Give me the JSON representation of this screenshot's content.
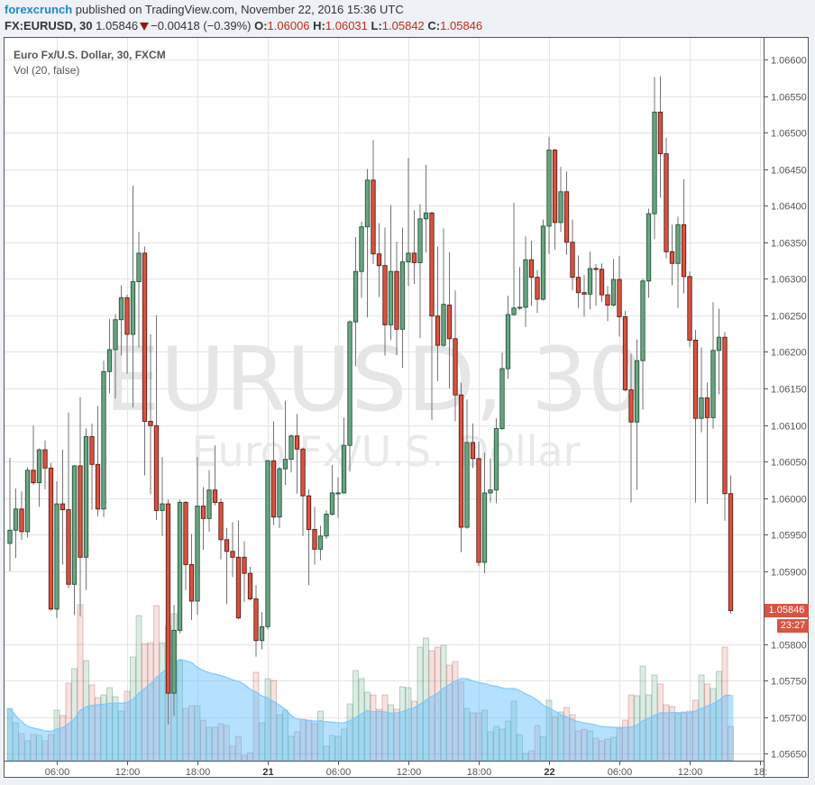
{
  "header": {
    "author": "forexcrunch",
    "published": "published on TradingView.com, November 22, 2016 15:36 UTC",
    "symbol": "FX:EURUSD, 30",
    "last": "1.05846",
    "change": "−0.00418 (−0.39%)",
    "o_label": "O:",
    "o": "1.06006",
    "h_label": "H:",
    "h": "1.06031",
    "l_label": "L:",
    "l": "1.05842",
    "c_label": "C:",
    "c": "1.05846",
    "down_icon": "triangle-down-icon"
  },
  "legend": {
    "title": "Euro Fx/U.S. Dollar, 30, FXCM",
    "volume": "Vol (20, false)"
  },
  "watermark": {
    "symbol": "EURUSD, 30",
    "description": "Euro Fx/U.S. Dollar"
  },
  "price_label": {
    "value": "1.05846",
    "countdown": "23:27"
  },
  "colors": {
    "up": "#6ba583",
    "up_border": "#225437",
    "down": "#d75442",
    "down_border": "#5b1a13",
    "wick": "#737375",
    "volume_ma": "#5bbcff",
    "price_label": "#d75442",
    "author": "#1e88c7"
  },
  "chart_data": {
    "type": "candlestick",
    "interval": "30",
    "price_ticks": [
      "1.06600",
      "1.06550",
      "1.06500",
      "1.06450",
      "1.06400",
      "1.06350",
      "1.06300",
      "1.06250",
      "1.06200",
      "1.06150",
      "1.06100",
      "1.06050",
      "1.06000",
      "1.05950",
      "1.05900",
      "1.05800",
      "1.05750",
      "1.05700",
      "1.05650"
    ],
    "ylim": [
      1.0565,
      1.066
    ],
    "x_ticks": [
      {
        "label": "06:00",
        "candle": 8
      },
      {
        "label": "12:00",
        "candle": 20
      },
      {
        "label": "18:00",
        "candle": 32
      },
      {
        "label": "21",
        "candle": 44
      },
      {
        "label": "06:00",
        "candle": 56
      },
      {
        "label": "12:00",
        "candle": 68
      },
      {
        "label": "18:00",
        "candle": 80
      },
      {
        "label": "22",
        "candle": 92
      },
      {
        "label": "06:00",
        "candle": 104
      },
      {
        "label": "12:00",
        "candle": 116
      },
      {
        "label": "18:",
        "candle": 128
      }
    ],
    "volume_ma_period": 20,
    "grid": true,
    "candles_ohlc": [
      [
        1.05938,
        1.06055,
        1.059,
        1.05956
      ],
      [
        1.05956,
        1.06013,
        1.05918,
        1.05985
      ],
      [
        1.05985,
        1.06009,
        1.05943,
        1.05954
      ],
      [
        1.05954,
        1.06042,
        1.05946,
        1.06038
      ],
      [
        1.06038,
        1.06099,
        1.06018,
        1.06021
      ],
      [
        1.06021,
        1.06068,
        1.05988,
        1.06066
      ],
      [
        1.06066,
        1.06079,
        1.06012,
        1.06041
      ],
      [
        1.06041,
        1.06048,
        1.05846,
        1.05848
      ],
      [
        1.05848,
        1.06023,
        1.05836,
        1.05992
      ],
      [
        1.05992,
        1.06066,
        1.05909,
        1.05984
      ],
      [
        1.05984,
        1.06117,
        1.05877,
        1.05882
      ],
      [
        1.05882,
        1.06045,
        1.0584,
        1.06044
      ],
      [
        1.06044,
        1.06138,
        1.05838,
        1.05919
      ],
      [
        1.05919,
        1.06095,
        1.05874,
        1.06084
      ],
      [
        1.06084,
        1.06102,
        1.05984,
        1.06046
      ],
      [
        1.06046,
        1.06126,
        1.05975,
        1.05985
      ],
      [
        1.05985,
        1.06188,
        1.05974,
        1.06173
      ],
      [
        1.06173,
        1.06245,
        1.06143,
        1.06203
      ],
      [
        1.06203,
        1.06252,
        1.06136,
        1.06244
      ],
      [
        1.06244,
        1.06291,
        1.06195,
        1.06274
      ],
      [
        1.06274,
        1.06278,
        1.0617,
        1.06224
      ],
      [
        1.06224,
        1.06427,
        1.06124,
        1.06296
      ],
      [
        1.06296,
        1.06364,
        1.06206,
        1.06335
      ],
      [
        1.06335,
        1.06344,
        1.06031,
        1.06105
      ],
      [
        1.06105,
        1.06224,
        1.06005,
        1.06099
      ],
      [
        1.06099,
        1.0625,
        1.0597,
        1.05983
      ],
      [
        1.05983,
        1.06056,
        1.05948,
        1.05992
      ],
      [
        1.05992,
        1.05998,
        1.0569,
        1.05733
      ],
      [
        1.05733,
        1.05854,
        1.05702,
        1.05819
      ],
      [
        1.05819,
        1.05998,
        1.05815,
        1.05994
      ],
      [
        1.05994,
        1.05996,
        1.05874,
        1.05909
      ],
      [
        1.05909,
        1.05951,
        1.05833,
        1.05859
      ],
      [
        1.05859,
        1.06056,
        1.0584,
        1.05989
      ],
      [
        1.05989,
        1.06015,
        1.05929,
        1.05972
      ],
      [
        1.05972,
        1.06038,
        1.05954,
        1.06011
      ],
      [
        1.06011,
        1.06072,
        1.0599,
        1.05994
      ],
      [
        1.05994,
        1.05999,
        1.05916,
        1.05943
      ],
      [
        1.05943,
        1.05959,
        1.05855,
        1.05927
      ],
      [
        1.05927,
        1.05967,
        1.05892,
        1.05919
      ],
      [
        1.05919,
        1.05969,
        1.05834,
        1.05836
      ],
      [
        1.05919,
        1.05941,
        1.05858,
        1.05897
      ],
      [
        1.05897,
        1.05906,
        1.0586,
        1.05862
      ],
      [
        1.05862,
        1.05881,
        1.05783,
        1.05805
      ],
      [
        1.05805,
        1.05844,
        1.05793,
        1.05824
      ],
      [
        1.05824,
        1.06052,
        1.0582,
        1.06051
      ],
      [
        1.06051,
        1.06105,
        1.05963,
        1.05974
      ],
      [
        1.05974,
        1.06043,
        1.05959,
        1.0604
      ],
      [
        1.0604,
        1.06133,
        1.06018,
        1.06053
      ],
      [
        1.06053,
        1.06087,
        1.06035,
        1.06085
      ],
      [
        1.06085,
        1.06115,
        1.06006,
        1.06067
      ],
      [
        1.06067,
        1.06069,
        1.05948,
        1.06003
      ],
      [
        1.06003,
        1.06012,
        1.05881,
        1.05957
      ],
      [
        1.05957,
        1.05988,
        1.05909,
        1.0593
      ],
      [
        1.0593,
        1.05962,
        1.05915,
        1.05948
      ],
      [
        1.05948,
        1.05983,
        1.05944,
        1.05978
      ],
      [
        1.05978,
        1.06045,
        1.05976,
        1.06007
      ],
      [
        1.06007,
        1.06028,
        1.05973,
        1.06007
      ],
      [
        1.06007,
        1.0611,
        1.06006,
        1.06072
      ],
      [
        1.06072,
        1.06243,
        1.06036,
        1.06241
      ],
      [
        1.06241,
        1.06357,
        1.0618,
        1.0631
      ],
      [
        1.0631,
        1.06378,
        1.06274,
        1.06371
      ],
      [
        1.06371,
        1.0645,
        1.06247,
        1.06435
      ],
      [
        1.06435,
        1.0649,
        1.0632,
        1.06334
      ],
      [
        1.06334,
        1.06376,
        1.06275,
        1.06318
      ],
      [
        1.06318,
        1.0637,
        1.06195,
        1.06237
      ],
      [
        1.06237,
        1.06401,
        1.06216,
        1.0631
      ],
      [
        1.0631,
        1.06351,
        1.06196,
        1.06231
      ],
      [
        1.06231,
        1.0637,
        1.06178,
        1.06323
      ],
      [
        1.06323,
        1.06465,
        1.0629,
        1.06335
      ],
      [
        1.06335,
        1.06394,
        1.06293,
        1.06322
      ],
      [
        1.06322,
        1.06402,
        1.06219,
        1.06382
      ],
      [
        1.06382,
        1.06456,
        1.06336,
        1.0639
      ],
      [
        1.0639,
        1.06392,
        1.06107,
        1.06249
      ],
      [
        1.06249,
        1.06344,
        1.0616,
        1.06209
      ],
      [
        1.06209,
        1.06369,
        1.06207,
        1.06265
      ],
      [
        1.06264,
        1.06336,
        1.0615,
        1.06218
      ],
      [
        1.06218,
        1.06284,
        1.06105,
        1.06141
      ],
      [
        1.06141,
        1.06158,
        1.05926,
        1.0596
      ],
      [
        1.0596,
        1.06135,
        1.05958,
        1.06076
      ],
      [
        1.06076,
        1.06102,
        1.06041,
        1.06054
      ],
      [
        1.06054,
        1.06077,
        1.05907,
        1.05912
      ],
      [
        1.05912,
        1.06062,
        1.05897,
        1.06007
      ],
      [
        1.06007,
        1.06054,
        1.05994,
        1.06011
      ],
      [
        1.06011,
        1.06109,
        1.05993,
        1.06095
      ],
      [
        1.06095,
        1.06199,
        1.06093,
        1.06177
      ],
      [
        1.06177,
        1.06277,
        1.06163,
        1.06251
      ],
      [
        1.06251,
        1.06404,
        1.06249,
        1.0626
      ],
      [
        1.0626,
        1.06316,
        1.06257,
        1.06261
      ],
      [
        1.06261,
        1.06358,
        1.06234,
        1.06326
      ],
      [
        1.06326,
        1.06352,
        1.06263,
        1.06302
      ],
      [
        1.06302,
        1.06312,
        1.06253,
        1.06272
      ],
      [
        1.06272,
        1.06381,
        1.0627,
        1.06372
      ],
      [
        1.06372,
        1.06494,
        1.06334,
        1.06476
      ],
      [
        1.06476,
        1.06478,
        1.0634,
        1.06377
      ],
      [
        1.06377,
        1.06453,
        1.06364,
        1.06419
      ],
      [
        1.06419,
        1.06447,
        1.06333,
        1.0635
      ],
      [
        1.0635,
        1.06381,
        1.06284,
        1.06302
      ],
      [
        1.06302,
        1.06332,
        1.0626,
        1.06281
      ],
      [
        1.06281,
        1.06305,
        1.06248,
        1.06279
      ],
      [
        1.06279,
        1.06337,
        1.06258,
        1.06314
      ],
      [
        1.06314,
        1.0632,
        1.06263,
        1.06313
      ],
      [
        1.06313,
        1.06321,
        1.06268,
        1.06278
      ],
      [
        1.06278,
        1.0629,
        1.06242,
        1.06264
      ],
      [
        1.06264,
        1.06327,
        1.06262,
        1.06299
      ],
      [
        1.06299,
        1.06331,
        1.06221,
        1.06248
      ],
      [
        1.06248,
        1.06256,
        1.06146,
        1.06148
      ],
      [
        1.06148,
        1.06197,
        1.05994,
        1.06104
      ],
      [
        1.06104,
        1.06217,
        1.06011,
        1.06188
      ],
      [
        1.06188,
        1.063,
        1.06121,
        1.06297
      ],
      [
        1.06297,
        1.06396,
        1.06274,
        1.06389
      ],
      [
        1.06389,
        1.06576,
        1.06354,
        1.06528
      ],
      [
        1.06528,
        1.06577,
        1.06411,
        1.06471
      ],
      [
        1.06471,
        1.06493,
        1.06328,
        1.06337
      ],
      [
        1.06337,
        1.06374,
        1.06291,
        1.06321
      ],
      [
        1.06321,
        1.06385,
        1.0626,
        1.06374
      ],
      [
        1.06374,
        1.06436,
        1.0628,
        1.06303
      ],
      [
        1.06303,
        1.0631,
        1.06207,
        1.06216
      ],
      [
        1.06216,
        1.0623,
        1.05994,
        1.06109
      ],
      [
        1.06109,
        1.06206,
        1.0609,
        1.06137
      ],
      [
        1.06137,
        1.06158,
        1.05992,
        1.0611
      ],
      [
        1.0611,
        1.06268,
        1.06095,
        1.06202
      ],
      [
        1.06202,
        1.06259,
        1.06142,
        1.0622
      ],
      [
        1.0622,
        1.06227,
        1.05969,
        1.06006
      ],
      [
        1.06006,
        1.06031,
        1.05842,
        1.05846
      ]
    ],
    "volume_relative": [
      58,
      42,
      30,
      22,
      29,
      28,
      22,
      29,
      56,
      50,
      86,
      102,
      173,
      111,
      84,
      70,
      73,
      81,
      71,
      55,
      77,
      115,
      161,
      130,
      131,
      172,
      131,
      150,
      163,
      111,
      58,
      61,
      61,
      45,
      37,
      37,
      41,
      39,
      16,
      27,
      6,
      9,
      98,
      42,
      91,
      89,
      51,
      56,
      27,
      32,
      46,
      45,
      41,
      55,
      16,
      28,
      27,
      35,
      63,
      100,
      91,
      76,
      73,
      57,
      73,
      62,
      57,
      82,
      81,
      66,
      126,
      136,
      122,
      126,
      128,
      106,
      110,
      87,
      58,
      53,
      53,
      56,
      32,
      38,
      35,
      44,
      66,
      29,
      8,
      11,
      39,
      27,
      67,
      49,
      54,
      59,
      51,
      33,
      35,
      33,
      25,
      22,
      24,
      26,
      36,
      45,
      73,
      72,
      105,
      73,
      95,
      85,
      62,
      60,
      52,
      54,
      55,
      67,
      95,
      85,
      80,
      99,
      126,
      38
    ]
  }
}
